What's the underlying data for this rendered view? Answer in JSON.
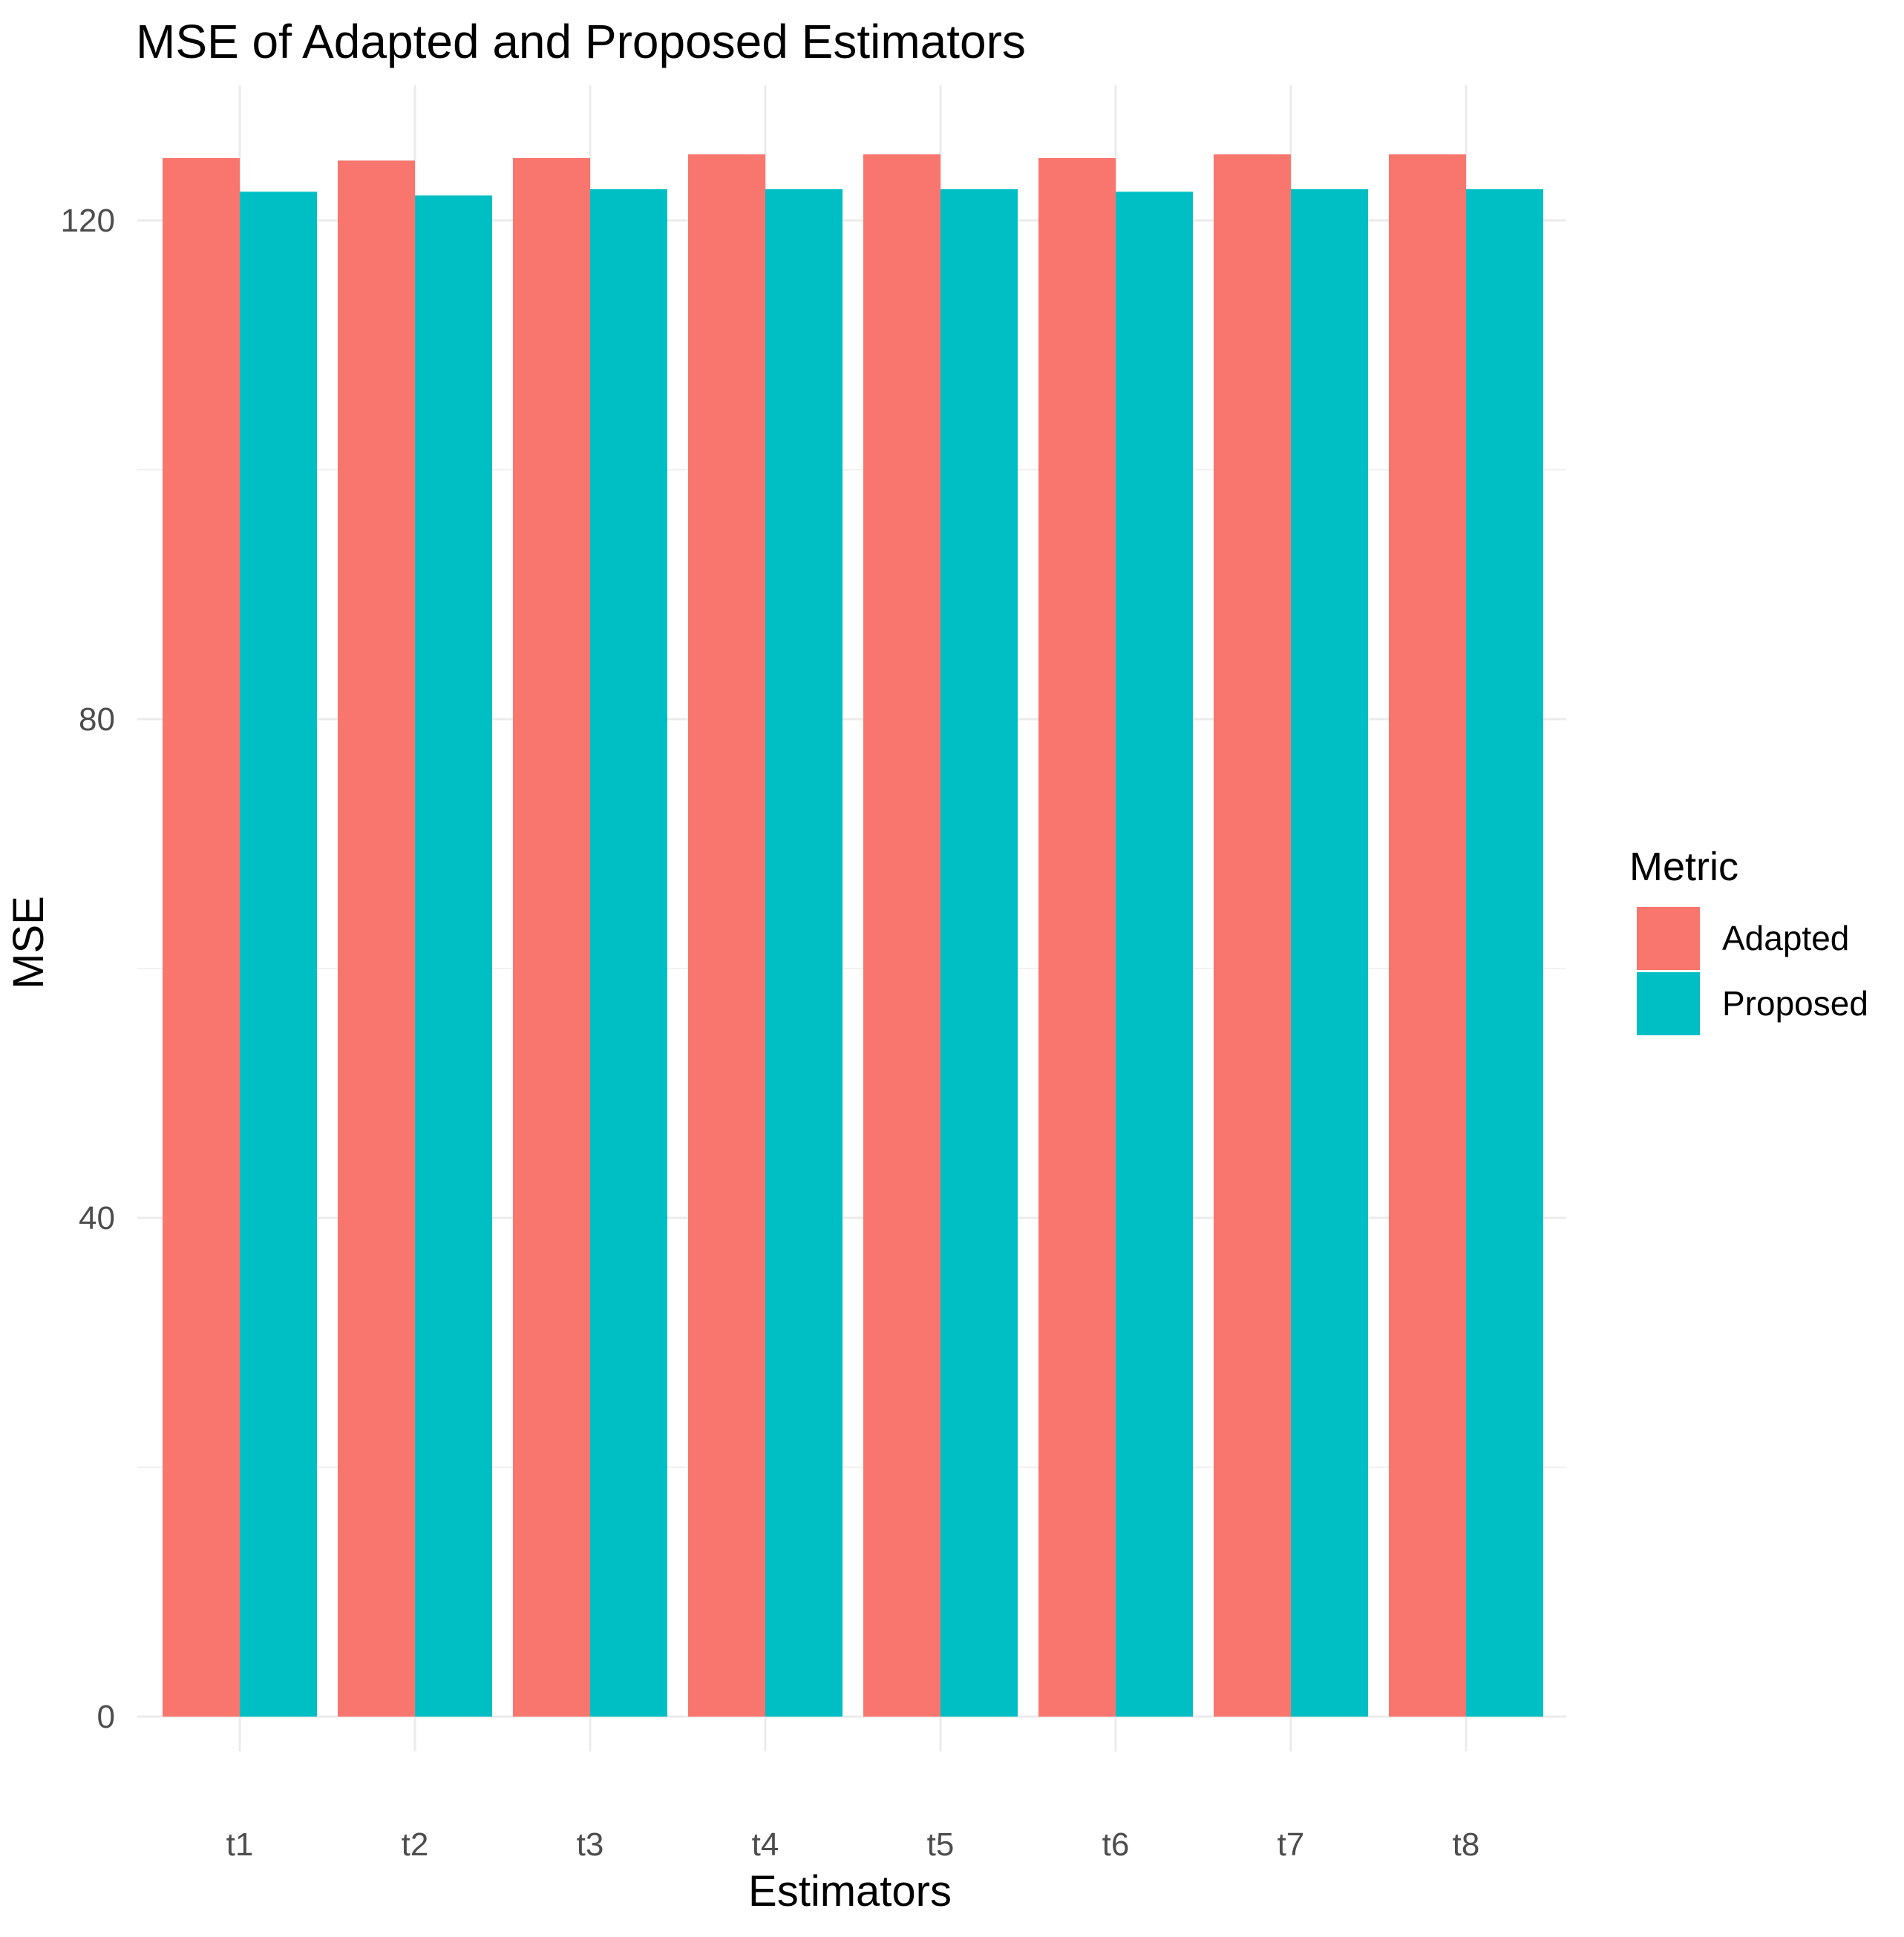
{
  "chart_data": {
    "type": "bar",
    "title": "MSE of Adapted and Proposed Estimators",
    "xlabel": "Estimators",
    "ylabel": "MSE",
    "categories": [
      "t1",
      "t2",
      "t3",
      "t4",
      "t5",
      "t6",
      "t7",
      "t8"
    ],
    "series": [
      {
        "name": "Adapted",
        "color": "#F8766D",
        "values": [
          125.0,
          124.8,
          125.0,
          125.3,
          125.3,
          125.0,
          125.3,
          125.3
        ]
      },
      {
        "name": "Proposed",
        "color": "#00BFC4",
        "values": [
          122.3,
          122.0,
          122.5,
          122.5,
          122.5,
          122.3,
          122.5,
          122.5
        ]
      }
    ],
    "ylim": [
      0,
      130
    ],
    "yticks": [
      0,
      40,
      80,
      120
    ],
    "yticks_labels": [
      "0",
      "40",
      "80",
      "120"
    ],
    "grid": true,
    "legend": {
      "title": "Metric",
      "position": "right",
      "entries": [
        "Adapted",
        "Proposed"
      ]
    }
  }
}
